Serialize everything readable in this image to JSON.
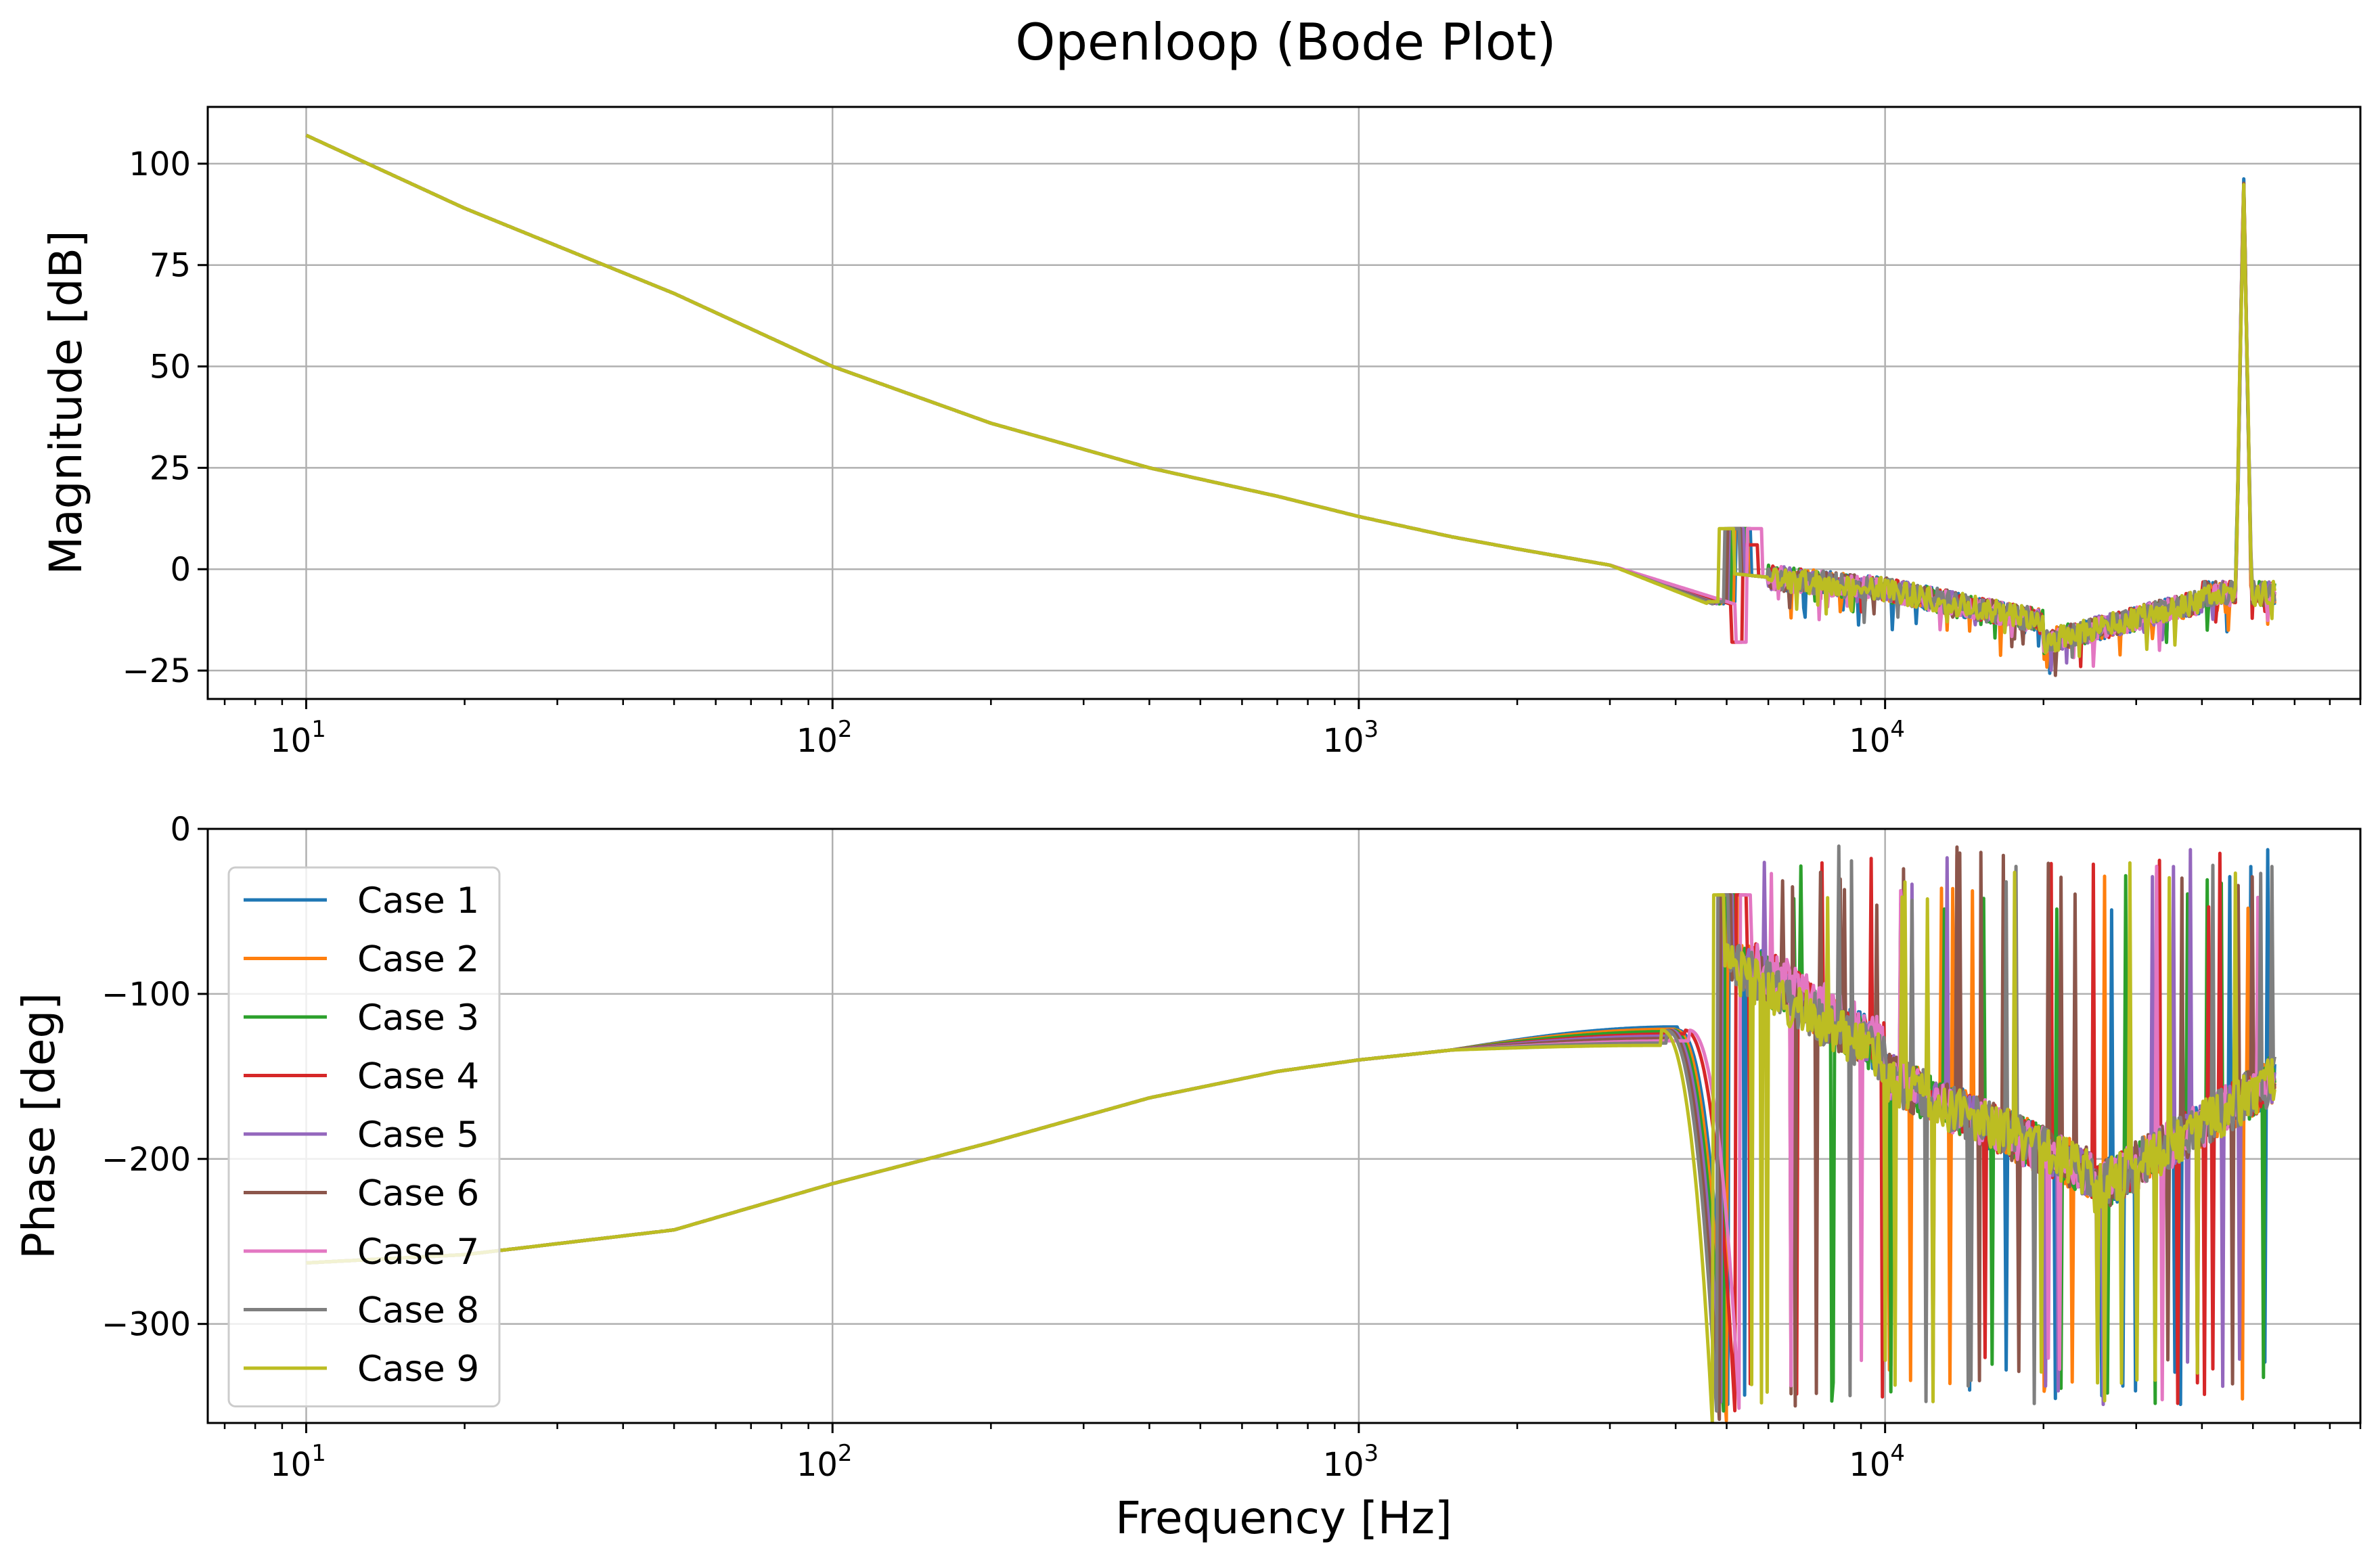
{
  "chart_data": {
    "title": "Openloop (Bode Plot)",
    "type": "line",
    "x_scale": "log",
    "xlabel": "Frequency [Hz]",
    "xlim": [
      6.5,
      80000
    ],
    "x_ticks": [
      {
        "value": 10,
        "base": "10",
        "exp": "1"
      },
      {
        "value": 100,
        "base": "10",
        "exp": "2"
      },
      {
        "value": 1000,
        "base": "10",
        "exp": "3"
      },
      {
        "value": 10000,
        "base": "10",
        "exp": "4"
      }
    ],
    "grid": true,
    "legend_position": "lower-left of phase plot",
    "series": [
      {
        "name": "Case 1",
        "color": "#1f77b4"
      },
      {
        "name": "Case 2",
        "color": "#ff7f0e"
      },
      {
        "name": "Case 3",
        "color": "#2ca02c"
      },
      {
        "name": "Case 4",
        "color": "#d62728"
      },
      {
        "name": "Case 5",
        "color": "#9467bd"
      },
      {
        "name": "Case 6",
        "color": "#8c564b"
      },
      {
        "name": "Case 7",
        "color": "#e377c2"
      },
      {
        "name": "Case 8",
        "color": "#7f7f7f"
      },
      {
        "name": "Case 9",
        "color": "#bcbd22"
      }
    ],
    "magnitude": {
      "ylabel": "Magnitude [dB]",
      "ylim": [
        -32,
        114
      ],
      "y_ticks": [
        100,
        75,
        50,
        25,
        0,
        -25
      ],
      "y_tick_labels": [
        "100",
        "75",
        "50",
        "25",
        "0",
        "−25"
      ],
      "common": [
        [
          10,
          107
        ],
        [
          20,
          89
        ],
        [
          50,
          68
        ],
        [
          100,
          50
        ],
        [
          200,
          36
        ],
        [
          400,
          25
        ],
        [
          700,
          18
        ],
        [
          1000,
          13
        ],
        [
          1500,
          8
        ],
        [
          2000,
          5
        ],
        [
          3000,
          1
        ]
      ],
      "peak": {
        "frequency": 48000,
        "value": 96
      }
    },
    "phase": {
      "ylabel": "Phase [deg]",
      "ylim": [
        -360,
        0
      ],
      "y_ticks": [
        0,
        -100,
        -200,
        -300
      ],
      "y_tick_labels": [
        "0",
        "−100",
        "−200",
        "−300"
      ],
      "common": [
        [
          10,
          -263
        ],
        [
          20,
          -258
        ],
        [
          50,
          -243
        ],
        [
          100,
          -215
        ],
        [
          200,
          -190
        ],
        [
          400,
          -163
        ],
        [
          700,
          -147
        ],
        [
          1000,
          -140
        ],
        [
          1500,
          -134
        ]
      ],
      "rolloff_frequencies": [
        5050,
        5000,
        4950,
        5200,
        4900,
        4850,
        5300,
        4800,
        4700
      ]
    }
  }
}
